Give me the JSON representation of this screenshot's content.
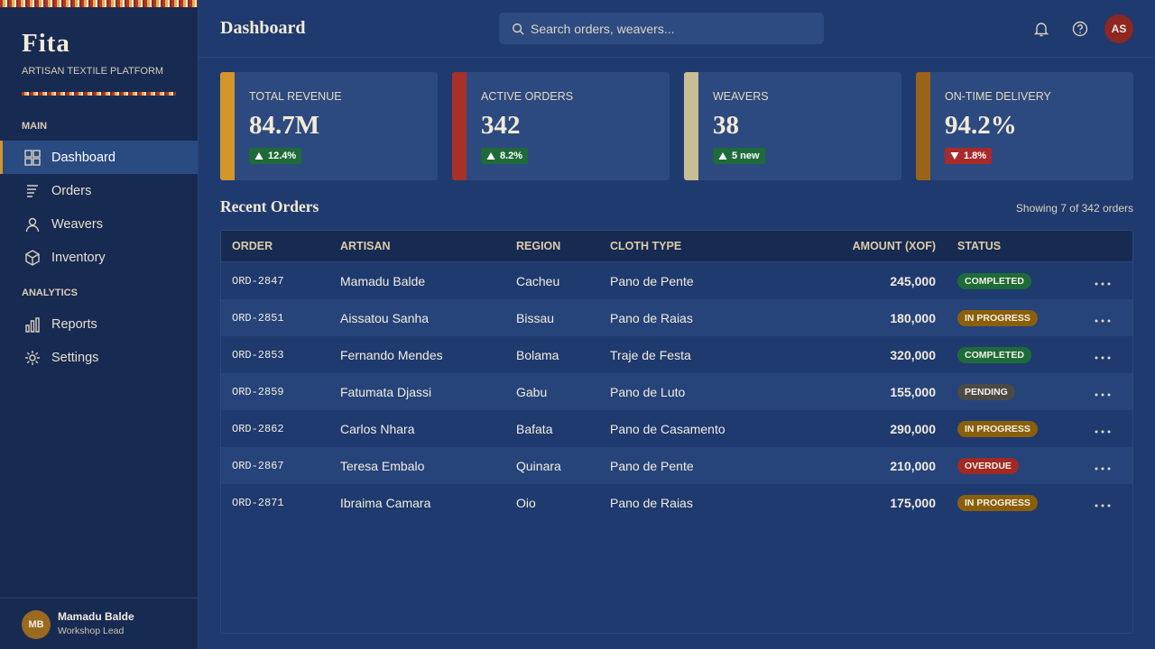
{
  "sidebar": {
    "brand": "Fita",
    "tagline": "ARTISAN TEXTILE PLATFORM",
    "sections": [
      {
        "label": "MAIN",
        "items": [
          "Dashboard",
          "Orders",
          "Weavers",
          "Inventory"
        ]
      },
      {
        "label": "ANALYTICS",
        "items": [
          "Reports",
          "Settings"
        ]
      }
    ],
    "user": {
      "initials": "MB",
      "name": "Mamadu Balde",
      "role": "Workshop Lead"
    }
  },
  "header": {
    "title": "Dashboard",
    "search_placeholder": "Search orders, weavers...",
    "avatar": "AS"
  },
  "kpis": [
    {
      "label": "TOTAL REVENUE",
      "value": "84.7M",
      "change": "12.4%",
      "trend": "up",
      "accent": "#d4952b"
    },
    {
      "label": "ACTIVE ORDERS",
      "value": "342",
      "change": "8.2%",
      "trend": "up",
      "accent": "#a8302a"
    },
    {
      "label": "WEAVERS",
      "value": "38",
      "change": "5 new",
      "trend": "up",
      "accent": "#c9bd94"
    },
    {
      "label": "ON-TIME DELIVERY",
      "value": "94.2%",
      "change": "1.8%",
      "trend": "down",
      "accent": "#9a6418"
    }
  ],
  "recent": {
    "title": "Recent Orders",
    "summary": "Showing 7 of 342 orders"
  },
  "table": {
    "columns": [
      "ORDER",
      "ARTISAN",
      "REGION",
      "CLOTH TYPE",
      "AMOUNT (XOF)",
      "STATUS"
    ],
    "rows": [
      {
        "order": "ORD-2847",
        "artisan": "Mamadu Balde",
        "region": "Cacheu",
        "cloth": "Pano de Pente",
        "amount": "245,000",
        "status": "COMPLETED",
        "status_color": "#1e6b3a"
      },
      {
        "order": "ORD-2851",
        "artisan": "Aissatou Sanha",
        "region": "Bissau",
        "cloth": "Pano de Raias",
        "amount": "180,000",
        "status": "IN PROGRESS",
        "status_color": "#8a5f0c"
      },
      {
        "order": "ORD-2853",
        "artisan": "Fernando Mendes",
        "region": "Bolama",
        "cloth": "Traje de Festa",
        "amount": "320,000",
        "status": "COMPLETED",
        "status_color": "#1e6b3a"
      },
      {
        "order": "ORD-2859",
        "artisan": "Fatumata Djassi",
        "region": "Gabu",
        "cloth": "Pano de Luto",
        "amount": "155,000",
        "status": "PENDING",
        "status_color": "#4b4a45"
      },
      {
        "order": "ORD-2862",
        "artisan": "Carlos Nhara",
        "region": "Bafata",
        "cloth": "Pano de Casamento",
        "amount": "290,000",
        "status": "IN PROGRESS",
        "status_color": "#8a5f0c"
      },
      {
        "order": "ORD-2867",
        "artisan": "Teresa Embalo",
        "region": "Quinara",
        "cloth": "Pano de Pente",
        "amount": "210,000",
        "status": "OVERDUE",
        "status_color": "#a12a26"
      },
      {
        "order": "ORD-2871",
        "artisan": "Ibraima Camara",
        "region": "Oio",
        "cloth": "Pano de Raias",
        "amount": "175,000",
        "status": "IN PROGRESS",
        "status_color": "#8a5f0c"
      }
    ]
  }
}
